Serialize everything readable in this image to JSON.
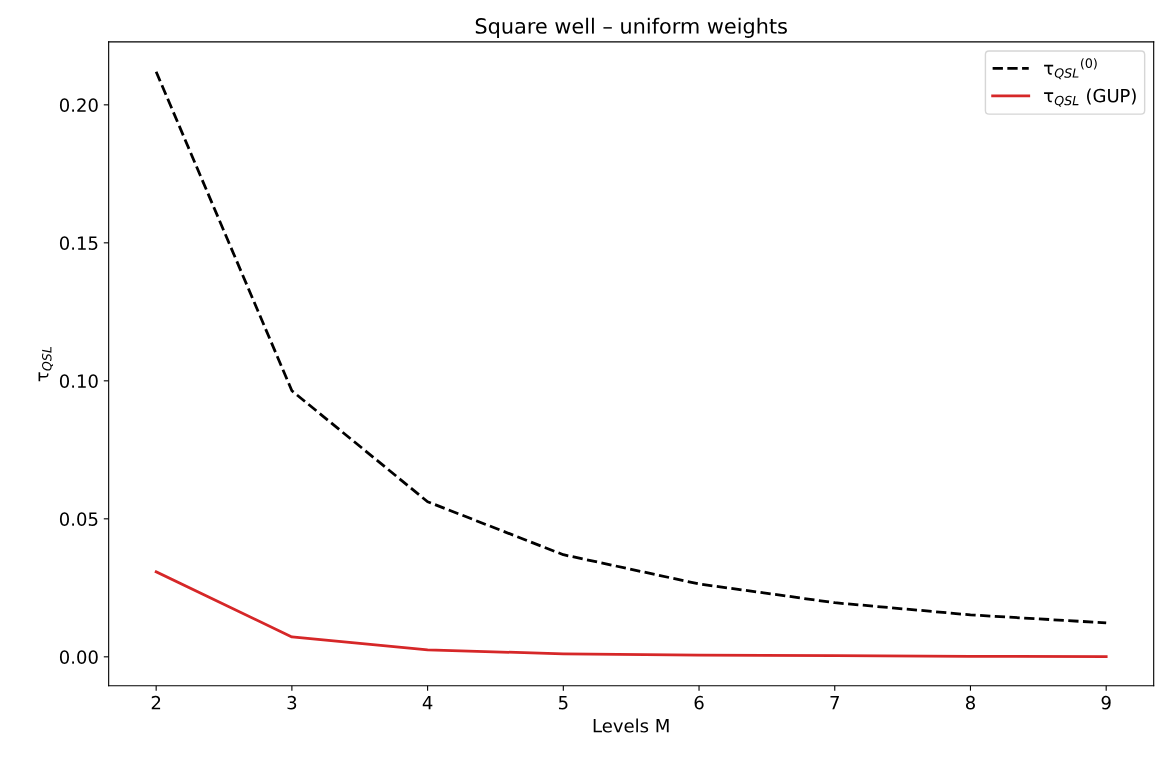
{
  "chart_data": {
    "type": "line",
    "title": "Square well – uniform weights",
    "xlabel": "Levels M",
    "ylabel": "τ$_{QSL}$",
    "x": [
      2,
      3,
      4,
      5,
      6,
      7,
      8,
      9
    ],
    "series": [
      {
        "name": "τ$_{QSL}$$^{(0)}$",
        "color": "#000000",
        "line_style": "dashed",
        "values": [
          0.212,
          0.0964,
          0.0562,
          0.037,
          0.0264,
          0.0196,
          0.0152,
          0.0123
        ]
      },
      {
        "name": "τ$_{QSL}$ (GUP)",
        "color": "#d62728",
        "line_style": "solid",
        "values": [
          0.0308,
          0.0072,
          0.0025,
          0.0011,
          0.0006,
          0.0004,
          0.0002,
          0.0001
        ]
      }
    ],
    "xlim": [
      1.65,
      9.35
    ],
    "ylim": [
      -0.0105,
      0.2228
    ],
    "xticks": [
      2,
      3,
      4,
      5,
      6,
      7,
      8,
      9
    ],
    "yticks": [
      {
        "value": 0,
        "label": "0.00"
      },
      {
        "value": 0.05,
        "label": "0.05"
      },
      {
        "value": 0.1,
        "label": "0.10"
      },
      {
        "value": 0.15,
        "label": "0.15"
      },
      {
        "value": 0.2,
        "label": "0.20"
      }
    ],
    "grid": false,
    "legend": "top right",
    "marker": "none"
  }
}
